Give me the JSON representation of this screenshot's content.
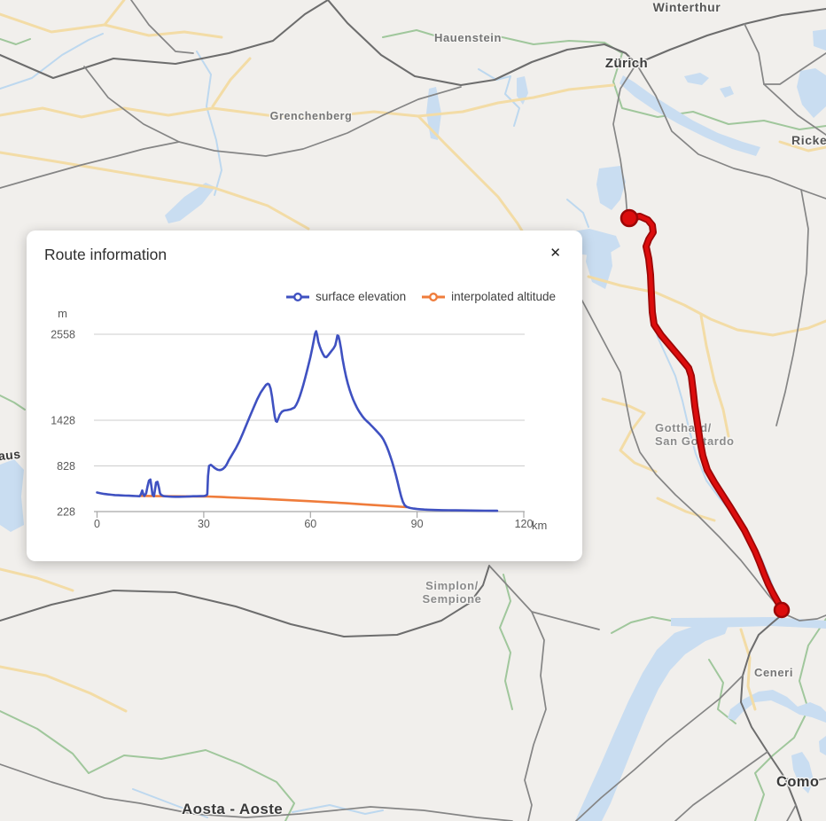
{
  "panel": {
    "title": "Route information",
    "close_label": "✕"
  },
  "chart_data": {
    "type": "line",
    "title": "",
    "xlabel": "km",
    "ylabel": "m",
    "x_ticks": [
      0,
      30,
      60,
      90,
      120
    ],
    "y_ticks": [
      228,
      828,
      1428,
      2558
    ],
    "xlim": [
      0,
      120
    ],
    "ylim": [
      228,
      2558
    ],
    "grid": "horizontal",
    "legend_position": "top-right",
    "series": [
      {
        "name": "surface elevation",
        "color": "#3f51c1",
        "points": [
          [
            0,
            478
          ],
          [
            1,
            468
          ],
          [
            2,
            460
          ],
          [
            3,
            454
          ],
          [
            4,
            449
          ],
          [
            5,
            445
          ],
          [
            6,
            442
          ],
          [
            7,
            440
          ],
          [
            8,
            438
          ],
          [
            9,
            436
          ],
          [
            10,
            434
          ],
          [
            11,
            432
          ],
          [
            12,
            430
          ],
          [
            12.4,
            465
          ],
          [
            12.7,
            505
          ],
          [
            13,
            455
          ],
          [
            13.3,
            433
          ],
          [
            13.8,
            468
          ],
          [
            14.2,
            560
          ],
          [
            14.6,
            635
          ],
          [
            15,
            648
          ],
          [
            15.3,
            555
          ],
          [
            15.6,
            448
          ],
          [
            16,
            430
          ],
          [
            16.3,
            515
          ],
          [
            16.6,
            610
          ],
          [
            17,
            618
          ],
          [
            17.4,
            545
          ],
          [
            17.7,
            470
          ],
          [
            18,
            448
          ],
          [
            18.5,
            435
          ],
          [
            19,
            429
          ],
          [
            20,
            426
          ],
          [
            21,
            424
          ],
          [
            22,
            423
          ],
          [
            23,
            423
          ],
          [
            24,
            424
          ],
          [
            25,
            425
          ],
          [
            26,
            427
          ],
          [
            27,
            429
          ],
          [
            28,
            430
          ],
          [
            29,
            431
          ],
          [
            30,
            432
          ],
          [
            30.6,
            438
          ],
          [
            31,
            455
          ],
          [
            31.2,
            690
          ],
          [
            31.5,
            828
          ],
          [
            32,
            842
          ],
          [
            32.5,
            825
          ],
          [
            33,
            803
          ],
          [
            33.5,
            788
          ],
          [
            34,
            777
          ],
          [
            34.5,
            773
          ],
          [
            35,
            778
          ],
          [
            35.5,
            792
          ],
          [
            36,
            815
          ],
          [
            36.5,
            852
          ],
          [
            37,
            900
          ],
          [
            38,
            978
          ],
          [
            39,
            1058
          ],
          [
            40,
            1148
          ],
          [
            41,
            1255
          ],
          [
            42,
            1368
          ],
          [
            43,
            1480
          ],
          [
            44,
            1592
          ],
          [
            45,
            1700
          ],
          [
            46,
            1792
          ],
          [
            47,
            1860
          ],
          [
            47.5,
            1893
          ],
          [
            48,
            1908
          ],
          [
            48.4,
            1898
          ],
          [
            48.8,
            1845
          ],
          [
            49.2,
            1740
          ],
          [
            49.6,
            1600
          ],
          [
            50,
            1475
          ],
          [
            50.3,
            1418
          ],
          [
            50.6,
            1408
          ],
          [
            51,
            1452
          ],
          [
            51.4,
            1502
          ],
          [
            52,
            1540
          ],
          [
            52.6,
            1556
          ],
          [
            53.5,
            1562
          ],
          [
            54.5,
            1572
          ],
          [
            55.5,
            1595
          ],
          [
            56,
            1630
          ],
          [
            56.5,
            1678
          ],
          [
            57,
            1740
          ],
          [
            57.5,
            1812
          ],
          [
            58,
            1892
          ],
          [
            58.5,
            1978
          ],
          [
            59,
            2068
          ],
          [
            59.5,
            2162
          ],
          [
            60,
            2262
          ],
          [
            60.5,
            2372
          ],
          [
            61,
            2492
          ],
          [
            61.3,
            2565
          ],
          [
            61.6,
            2598
          ],
          [
            61.9,
            2545
          ],
          [
            62.2,
            2462
          ],
          [
            62.6,
            2402
          ],
          [
            63,
            2352
          ],
          [
            63.5,
            2300
          ],
          [
            64,
            2262
          ],
          [
            64.5,
            2258
          ],
          [
            65,
            2282
          ],
          [
            65.5,
            2312
          ],
          [
            66,
            2342
          ],
          [
            66.5,
            2372
          ],
          [
            67,
            2412
          ],
          [
            67.3,
            2472
          ],
          [
            67.6,
            2542
          ],
          [
            67.9,
            2535
          ],
          [
            68.2,
            2472
          ],
          [
            68.6,
            2368
          ],
          [
            69,
            2242
          ],
          [
            69.5,
            2115
          ],
          [
            70,
            2005
          ],
          [
            70.5,
            1912
          ],
          [
            71,
            1832
          ],
          [
            71.5,
            1763
          ],
          [
            72,
            1702
          ],
          [
            72.5,
            1650
          ],
          [
            73,
            1602
          ],
          [
            73.5,
            1560
          ],
          [
            74,
            1522
          ],
          [
            74.5,
            1489
          ],
          [
            75,
            1458
          ],
          [
            75.5,
            1433
          ],
          [
            76,
            1410
          ],
          [
            76.5,
            1388
          ],
          [
            77,
            1364
          ],
          [
            77.5,
            1340
          ],
          [
            78,
            1316
          ],
          [
            78.5,
            1292
          ],
          [
            79,
            1266
          ],
          [
            79.5,
            1240
          ],
          [
            80,
            1212
          ],
          [
            80.5,
            1176
          ],
          [
            81,
            1130
          ],
          [
            81.5,
            1078
          ],
          [
            82,
            1018
          ],
          [
            82.5,
            952
          ],
          [
            83,
            880
          ],
          [
            83.5,
            800
          ],
          [
            84,
            712
          ],
          [
            84.5,
            618
          ],
          [
            85,
            520
          ],
          [
            85.5,
            428
          ],
          [
            86,
            356
          ],
          [
            86.5,
            312
          ],
          [
            87,
            292
          ],
          [
            87.5,
            283
          ],
          [
            88,
            276
          ],
          [
            89,
            268
          ],
          [
            90,
            262
          ],
          [
            91,
            258
          ],
          [
            92,
            255
          ],
          [
            93,
            252
          ],
          [
            95,
            249
          ],
          [
            97,
            247
          ],
          [
            99,
            245
          ],
          [
            101,
            244
          ],
          [
            103,
            243
          ],
          [
            105,
            242
          ],
          [
            107,
            241
          ],
          [
            109,
            240
          ],
          [
            111,
            239
          ],
          [
            112.5,
            238
          ]
        ]
      },
      {
        "name": "interpolated altitude",
        "color": "#ef7c3b",
        "points": [
          [
            12.5,
            434
          ],
          [
            16,
            432
          ],
          [
            20,
            430
          ],
          [
            24,
            428
          ],
          [
            28,
            427
          ],
          [
            31,
            426
          ],
          [
            35,
            419
          ],
          [
            40,
            409
          ],
          [
            45,
            399
          ],
          [
            50,
            388
          ],
          [
            55,
            376
          ],
          [
            60,
            364
          ],
          [
            65,
            351
          ],
          [
            70,
            337
          ],
          [
            75,
            322
          ],
          [
            80,
            307
          ],
          [
            84,
            295
          ],
          [
            87,
            286
          ]
        ]
      }
    ]
  },
  "map": {
    "background_color": "#f1efec",
    "water_color": "#c9ddf1",
    "road_color": "#858585",
    "major_road_color": "#6d6d6d",
    "secondary_road_color": "#f3dca6",
    "border_color": "#a0c79c",
    "route_color": "#dc0d0d",
    "route_casing_color": "#9c0606",
    "labels": [
      {
        "text": "Winterthur"
      },
      {
        "text": "Hauenstein"
      },
      {
        "text": "Zürich"
      },
      {
        "text": "Ricke"
      },
      {
        "text": "Grenchenberg"
      },
      {
        "text": "Gotthard/"
      },
      {
        "text": "San Gottardo"
      },
      {
        "text": "Simplon/"
      },
      {
        "text": "Sempione"
      },
      {
        "text": "Ceneri"
      },
      {
        "text": "Como"
      },
      {
        "text": "aus"
      },
      {
        "text": "Aosta - Aoste"
      }
    ]
  }
}
